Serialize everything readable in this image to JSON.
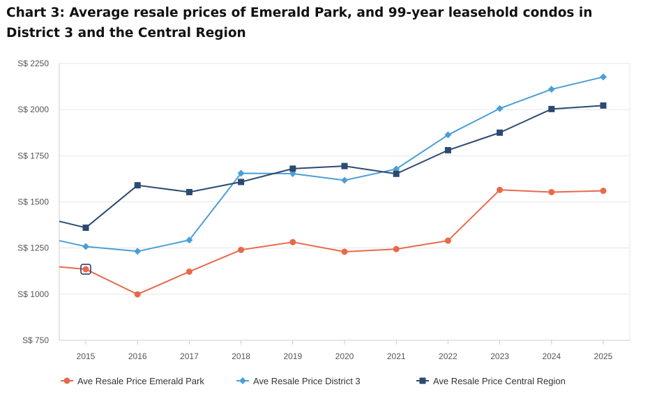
{
  "title": "Chart 3: Average resale prices of Emerald Park, and 99-year leasehold condos in District 3 and the Central Region",
  "chart_data": {
    "type": "line",
    "x": [
      "2015",
      "2016",
      "2017",
      "2018",
      "2019",
      "2020",
      "2021",
      "2022",
      "2023",
      "2024",
      "2025"
    ],
    "ylim": [
      750,
      2250
    ],
    "y_ticks": [
      750,
      1000,
      1250,
      1500,
      1750,
      2000,
      2250
    ],
    "y_tick_prefix": "S$ ",
    "grid": true,
    "legend_position": "bottom",
    "highlighted_point": {
      "series": 0,
      "x": "2015"
    },
    "series": [
      {
        "name": "Ave Resale Price Emerald Park",
        "color": "#e8694a",
        "marker": "circle",
        "edge_start": 1148,
        "values": [
          1135,
          999,
          1122,
          1240,
          1282,
          1230,
          1244,
          1290,
          1565,
          1553,
          1560
        ]
      },
      {
        "name": "Ave Resale Price District 3",
        "color": "#4a9fd8",
        "marker": "diamond",
        "edge_start": 1290,
        "values": [
          1258,
          1232,
          1293,
          1655,
          1653,
          1617,
          1678,
          1863,
          2006,
          2110,
          2177
        ]
      },
      {
        "name": "Ave Resale Price Central Region",
        "color": "#2b4a70",
        "marker": "square",
        "edge_start": 1395,
        "values": [
          1360,
          1590,
          1553,
          1608,
          1680,
          1694,
          1652,
          1780,
          1875,
          2003,
          2022
        ]
      }
    ]
  }
}
